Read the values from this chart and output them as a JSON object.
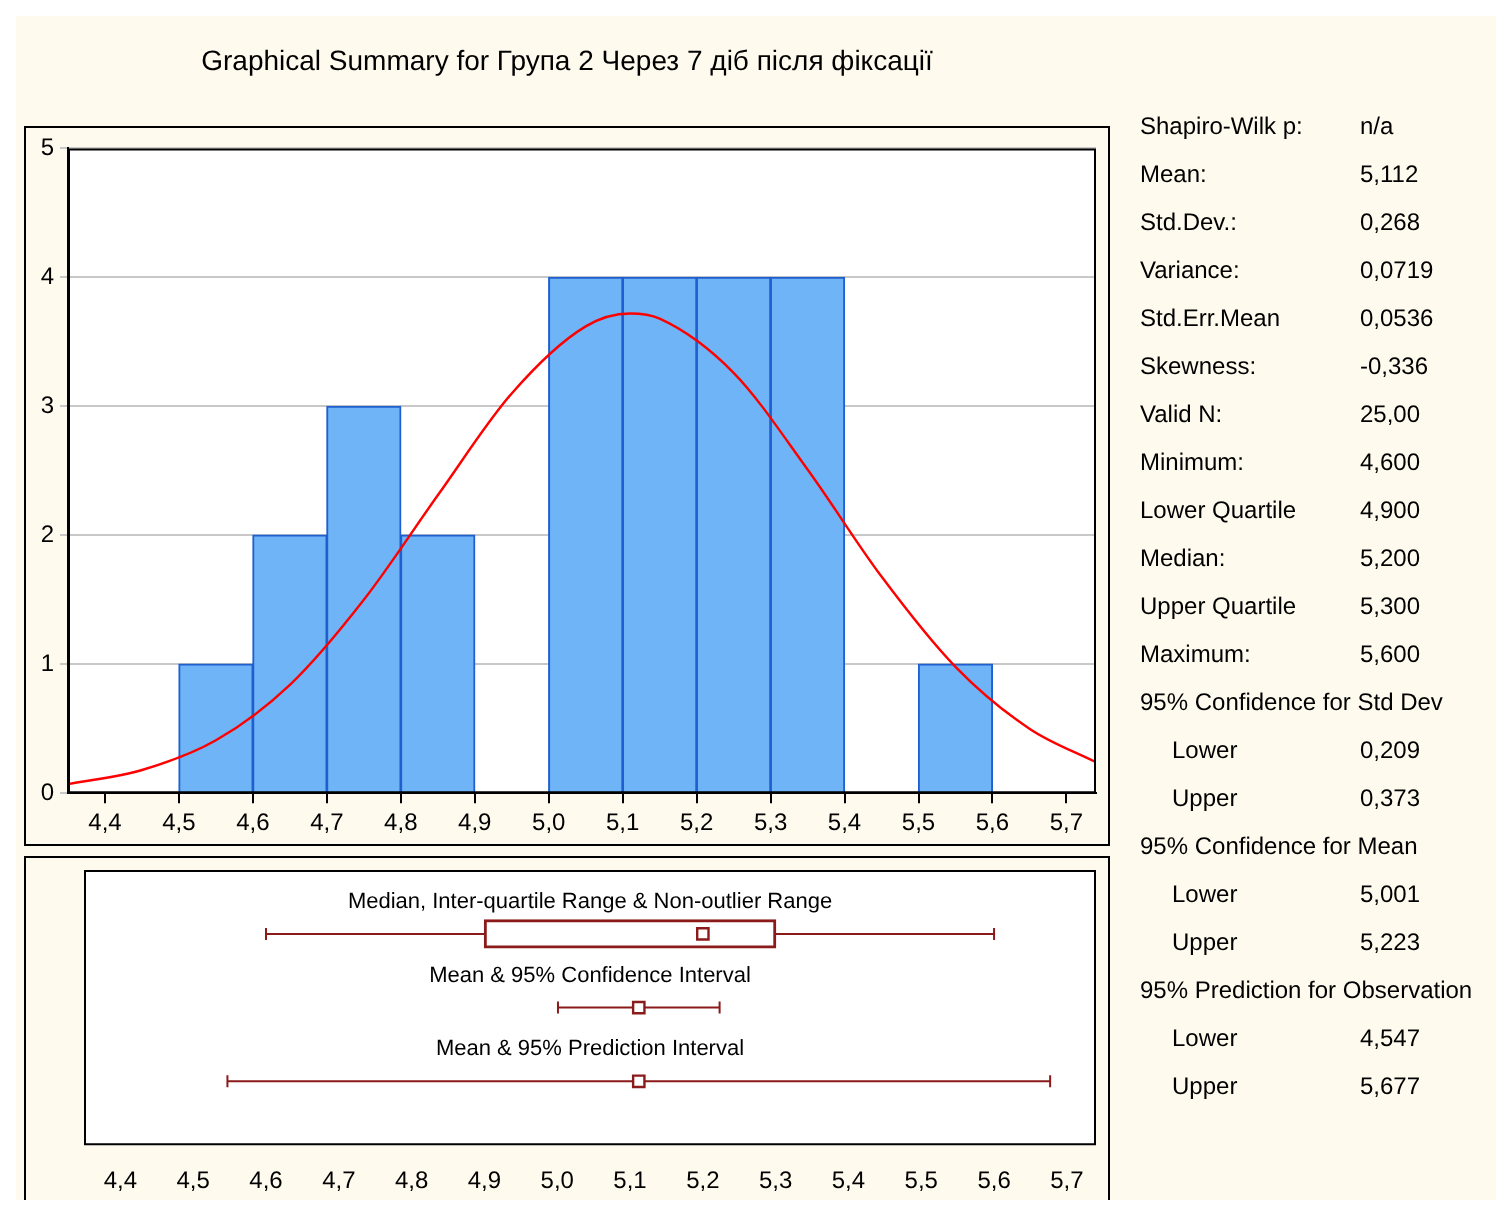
{
  "chart_data": [
    {
      "type": "histogram",
      "title": "Graphical Summary for Група 2 Через 7 діб після фіксації",
      "xlim": [
        4.35,
        5.74
      ],
      "xticks": [
        {
          "value": 4.4,
          "label": "4,4"
        },
        {
          "value": 4.5,
          "label": "4,5"
        },
        {
          "value": 4.6,
          "label": "4,6"
        },
        {
          "value": 4.7,
          "label": "4,7"
        },
        {
          "value": 4.8,
          "label": "4,8"
        },
        {
          "value": 4.9,
          "label": "4,9"
        },
        {
          "value": 5.0,
          "label": "5,0"
        },
        {
          "value": 5.1,
          "label": "5,1"
        },
        {
          "value": 5.2,
          "label": "5,2"
        },
        {
          "value": 5.3,
          "label": "5,3"
        },
        {
          "value": 5.4,
          "label": "5,4"
        },
        {
          "value": 5.5,
          "label": "5,5"
        },
        {
          "value": 5.6,
          "label": "5,6"
        },
        {
          "value": 5.7,
          "label": "5,7"
        }
      ],
      "ylim": [
        0,
        5
      ],
      "yticks": [
        0,
        1,
        2,
        3,
        4,
        5
      ],
      "grid": "y",
      "series": [
        {
          "type": "histogram",
          "color": "#6fb4f7",
          "bins": [
            4.5,
            4.6,
            4.7,
            4.8,
            4.9,
            5.0,
            5.1,
            5.2,
            5.3,
            5.4,
            5.5,
            5.6
          ],
          "values": [
            1,
            2,
            3,
            2,
            0,
            4,
            4,
            4,
            4,
            0,
            1
          ]
        },
        {
          "type": "line",
          "color": "#ff0000",
          "marker": "none",
          "x": [
            4.35,
            4.45,
            4.55,
            4.65,
            4.75,
            4.85,
            4.95,
            5.05,
            5.11,
            5.15,
            5.25,
            5.35,
            5.45,
            5.55,
            5.65,
            5.74
          ],
          "values": [
            0.07,
            0.18,
            0.41,
            0.84,
            1.5,
            2.31,
            3.1,
            3.62,
            3.72,
            3.68,
            3.26,
            2.51,
            1.68,
            0.98,
            0.5,
            0.24
          ]
        }
      ]
    },
    {
      "type": "box",
      "orientation": "horizontal",
      "categories": [
        "Median, Inter-quartile Range & Non-outlier Range",
        "Mean & 95% Confidence Interval",
        "Mean & 95% Prediction Interval"
      ],
      "xlim": [
        4.35,
        5.74
      ],
      "xticks": [
        {
          "value": 4.4,
          "label": "4,4"
        },
        {
          "value": 4.5,
          "label": "4,5"
        },
        {
          "value": 4.6,
          "label": "4,6"
        },
        {
          "value": 4.7,
          "label": "4,7"
        },
        {
          "value": 4.8,
          "label": "4,8"
        },
        {
          "value": 4.9,
          "label": "4,9"
        },
        {
          "value": 5.0,
          "label": "5,0"
        },
        {
          "value": 5.1,
          "label": "5,1"
        },
        {
          "value": 5.2,
          "label": "5,2"
        },
        {
          "value": 5.3,
          "label": "5,3"
        },
        {
          "value": 5.4,
          "label": "5,4"
        },
        {
          "value": 5.5,
          "label": "5,5"
        },
        {
          "value": 5.6,
          "label": "5,6"
        },
        {
          "value": 5.7,
          "label": "5,7"
        }
      ],
      "series": [
        {
          "type": "box",
          "color": "#8b1a1a",
          "boxes": [
            {
              "low": 4.6,
              "q1": 4.9,
              "median": 5.2,
              "q3": 5.3,
              "high": 5.6
            },
            null,
            null
          ]
        },
        {
          "type": "scatter",
          "color": "#8b1a1a",
          "marker": "square",
          "values": [
            null,
            5.112,
            5.112
          ],
          "errors": [
            null,
            [
              5.001,
              5.223
            ],
            [
              4.547,
              5.677
            ]
          ]
        }
      ]
    },
    {
      "type": "other",
      "annotations": [
        "Shapiro-Wilk p:\tn/a",
        "Mean:\t5,112",
        "Std.Dev.:\t0,268",
        "Variance:\t0,0719",
        "Std.Err.Mean\t0,0536",
        "Skewness:\t-0,336",
        "Valid N:\t25,00",
        "Minimum:\t4,600",
        "Lower Quartile\t4,900",
        "Median:\t5,200",
        "Upper Quartile\t5,300",
        "Maximum:\t5,600",
        "95% Confidence for Std Dev",
        "Lower\t0,209",
        "Upper\t0,373",
        "95% Confidence for Mean",
        "Lower\t5,001",
        "Upper\t5,223",
        "95% Prediction for Observation",
        "Lower\t4,547",
        "Upper\t5,677"
      ]
    }
  ]
}
